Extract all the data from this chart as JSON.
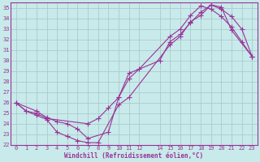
{
  "xlabel": "Windchill (Refroidissement éolien,°C)",
  "bg_color": "#c8eaea",
  "line_color": "#993399",
  "grid_color": "#aacccc",
  "xlim": [
    -0.5,
    23.5
  ],
  "ylim": [
    22,
    35.5
  ],
  "xticks": [
    0,
    1,
    2,
    3,
    4,
    5,
    6,
    7,
    8,
    9,
    10,
    11,
    12,
    14,
    15,
    16,
    17,
    18,
    19,
    20,
    21,
    22,
    23
  ],
  "yticks": [
    22,
    23,
    24,
    25,
    26,
    27,
    28,
    29,
    30,
    31,
    32,
    33,
    34,
    35
  ],
  "series1_x": [
    0,
    1,
    2,
    3,
    4,
    5,
    6,
    7,
    8,
    10,
    11,
    15,
    16,
    17,
    18,
    19,
    20,
    21,
    23
  ],
  "series1_y": [
    26.0,
    25.2,
    24.8,
    24.4,
    23.2,
    22.8,
    22.4,
    22.2,
    22.2,
    25.8,
    26.5,
    31.5,
    32.3,
    33.7,
    34.3,
    35.3,
    35.1,
    32.9,
    30.4
  ],
  "series2_x": [
    0,
    1,
    2,
    3,
    7,
    8,
    9,
    10,
    11,
    12,
    15,
    16,
    17,
    18,
    19,
    20,
    21,
    22,
    23
  ],
  "series2_y": [
    26.0,
    25.2,
    25.0,
    24.5,
    24.0,
    24.5,
    25.5,
    26.5,
    28.3,
    29.2,
    32.3,
    33.0,
    34.3,
    35.2,
    34.9,
    34.2,
    33.2,
    31.8,
    30.4
  ],
  "series3_x": [
    0,
    2,
    3,
    4,
    5,
    6,
    7,
    9,
    10,
    11,
    14,
    15,
    16,
    17,
    18,
    19,
    20,
    21,
    22,
    23
  ],
  "series3_y": [
    26.0,
    25.2,
    24.6,
    24.2,
    24.0,
    23.5,
    22.6,
    23.2,
    26.5,
    28.8,
    30.0,
    31.8,
    32.5,
    33.6,
    34.6,
    35.3,
    34.9,
    34.2,
    33.0,
    30.4
  ]
}
